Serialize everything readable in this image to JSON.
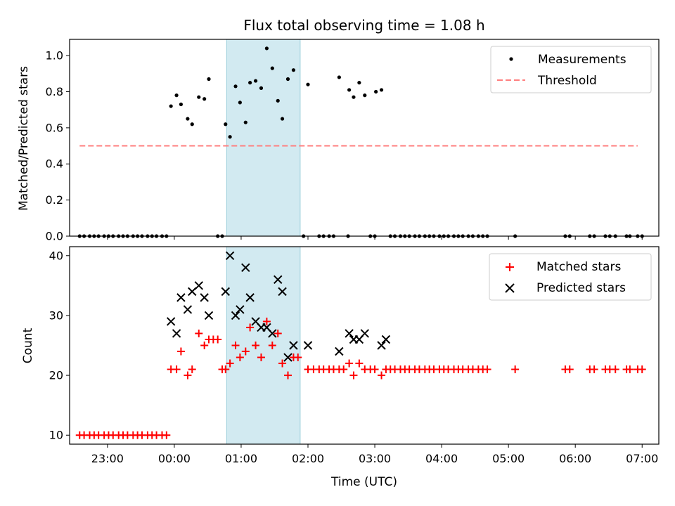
{
  "colors": {
    "measurement": "#000000",
    "threshold": "#ff7f7f",
    "matched": "#ff0000",
    "predicted": "#000000",
    "span": "#add8e6",
    "span_edge": "#9ccfdc"
  },
  "chart_data": [
    {
      "type": "scatter",
      "title": "Flux total observing time = 1.08 h",
      "xlabel": "",
      "ylabel": "Matched/Predicted stars",
      "ylim": [
        0,
        1.09
      ],
      "xlim": [
        "22:26",
        "07:15"
      ],
      "x_is_time_utc": true,
      "yticks": [
        "0.0",
        "0.2",
        "0.4",
        "0.6",
        "0.8",
        "1.0"
      ],
      "ytick_values": [
        0,
        0.2,
        0.4,
        0.6,
        0.8,
        1.0
      ],
      "xticks_shown": false,
      "legend_position": "top-right",
      "highlight_span": [
        "00:47",
        "01:53"
      ],
      "threshold": {
        "name": "Threshold",
        "value": 0.5,
        "x_range": [
          "22:35",
          "06:56"
        ],
        "style": "dashed"
      },
      "series": [
        {
          "name": "Measurements",
          "marker": "dot",
          "points": [
            [
              "22:35",
              0
            ],
            [
              "22:39",
              0
            ],
            [
              "22:44",
              0
            ],
            [
              "22:48",
              0
            ],
            [
              "22:52",
              0
            ],
            [
              "22:57",
              0
            ],
            [
              "23:01",
              0
            ],
            [
              "23:05",
              0
            ],
            [
              "23:10",
              0
            ],
            [
              "23:14",
              0
            ],
            [
              "23:18",
              0
            ],
            [
              "23:23",
              0
            ],
            [
              "23:27",
              0
            ],
            [
              "23:31",
              0
            ],
            [
              "23:36",
              0
            ],
            [
              "23:40",
              0
            ],
            [
              "23:44",
              0
            ],
            [
              "23:49",
              0
            ],
            [
              "23:53",
              0
            ],
            [
              "23:57",
              0.72
            ],
            [
              "00:02",
              0.78
            ],
            [
              "00:06",
              0.73
            ],
            [
              "00:12",
              0.65
            ],
            [
              "00:16",
              0.62
            ],
            [
              "00:22",
              0.77
            ],
            [
              "00:27",
              0.76
            ],
            [
              "00:31",
              0.87
            ],
            [
              "00:39",
              0
            ],
            [
              "00:43",
              0
            ],
            [
              "00:46",
              0.62
            ],
            [
              "00:50",
              0.55
            ],
            [
              "00:55",
              0.83
            ],
            [
              "00:59",
              0.74
            ],
            [
              "01:04",
              0.63
            ],
            [
              "01:08",
              0.85
            ],
            [
              "01:13",
              0.86
            ],
            [
              "01:18",
              0.82
            ],
            [
              "01:23",
              1.04
            ],
            [
              "01:28",
              0.93
            ],
            [
              "01:33",
              0.75
            ],
            [
              "01:37",
              0.65
            ],
            [
              "01:42",
              0.87
            ],
            [
              "01:47",
              0.92
            ],
            [
              "01:56",
              0
            ],
            [
              "02:10",
              0
            ],
            [
              "02:14",
              0
            ],
            [
              "02:19",
              0
            ],
            [
              "02:23",
              0
            ],
            [
              "02:36",
              0
            ],
            [
              "02:00",
              0.84
            ],
            [
              "02:28",
              0.88
            ],
            [
              "02:37",
              0.81
            ],
            [
              "02:41",
              0.77
            ],
            [
              "02:46",
              0.85
            ],
            [
              "02:51",
              0.78
            ],
            [
              "03:01",
              0.8
            ],
            [
              "03:06",
              0.81
            ],
            [
              "02:56",
              0
            ],
            [
              "03:00",
              0
            ],
            [
              "03:14",
              0
            ],
            [
              "03:18",
              0
            ],
            [
              "03:23",
              0
            ],
            [
              "03:27",
              0
            ],
            [
              "03:31",
              0
            ],
            [
              "03:36",
              0
            ],
            [
              "03:40",
              0
            ],
            [
              "03:45",
              0
            ],
            [
              "03:49",
              0
            ],
            [
              "03:53",
              0
            ],
            [
              "03:58",
              0
            ],
            [
              "04:02",
              0
            ],
            [
              "04:06",
              0
            ],
            [
              "04:11",
              0
            ],
            [
              "04:15",
              0
            ],
            [
              "04:19",
              0
            ],
            [
              "04:24",
              0
            ],
            [
              "04:28",
              0
            ],
            [
              "04:33",
              0
            ],
            [
              "04:37",
              0
            ],
            [
              "04:41",
              0
            ],
            [
              "05:06",
              0
            ],
            [
              "05:51",
              0
            ],
            [
              "05:55",
              0
            ],
            [
              "06:13",
              0
            ],
            [
              "06:17",
              0
            ],
            [
              "06:27",
              0
            ],
            [
              "06:31",
              0
            ],
            [
              "06:36",
              0
            ],
            [
              "06:46",
              0
            ],
            [
              "06:49",
              0
            ],
            [
              "06:56",
              0
            ],
            [
              "07:00",
              0
            ]
          ]
        }
      ]
    },
    {
      "type": "scatter",
      "title": "",
      "xlabel": "Time (UTC)",
      "ylabel": "Count",
      "ylim": [
        8.5,
        41.5
      ],
      "xlim": [
        "22:26",
        "07:15"
      ],
      "x_is_time_utc": true,
      "yticks": [
        "10",
        "20",
        "30",
        "40"
      ],
      "ytick_values": [
        10,
        20,
        30,
        40
      ],
      "xticks": [
        "23:00",
        "00:00",
        "01:00",
        "02:00",
        "03:00",
        "04:00",
        "05:00",
        "06:00",
        "07:00"
      ],
      "legend_position": "top-right",
      "highlight_span": [
        "00:47",
        "01:53"
      ],
      "series": [
        {
          "name": "Matched stars",
          "marker": "plus",
          "points": [
            [
              "22:35",
              10
            ],
            [
              "22:39",
              10
            ],
            [
              "22:44",
              10
            ],
            [
              "22:48",
              10
            ],
            [
              "22:52",
              10
            ],
            [
              "22:57",
              10
            ],
            [
              "23:01",
              10
            ],
            [
              "23:05",
              10
            ],
            [
              "23:10",
              10
            ],
            [
              "23:14",
              10
            ],
            [
              "23:18",
              10
            ],
            [
              "23:23",
              10
            ],
            [
              "23:27",
              10
            ],
            [
              "23:31",
              10
            ],
            [
              "23:36",
              10
            ],
            [
              "23:40",
              10
            ],
            [
              "23:44",
              10
            ],
            [
              "23:49",
              10
            ],
            [
              "23:53",
              10
            ],
            [
              "23:57",
              21
            ],
            [
              "00:02",
              21
            ],
            [
              "00:06",
              24
            ],
            [
              "00:12",
              20
            ],
            [
              "00:16",
              21
            ],
            [
              "00:22",
              27
            ],
            [
              "00:27",
              25
            ],
            [
              "00:31",
              26
            ],
            [
              "00:35",
              26
            ],
            [
              "00:39",
              26
            ],
            [
              "00:43",
              21
            ],
            [
              "00:46",
              21
            ],
            [
              "00:50",
              22
            ],
            [
              "00:55",
              25
            ],
            [
              "00:59",
              23
            ],
            [
              "01:04",
              24
            ],
            [
              "01:08",
              28
            ],
            [
              "01:13",
              25
            ],
            [
              "01:18",
              23
            ],
            [
              "01:23",
              29
            ],
            [
              "01:28",
              25
            ],
            [
              "01:33",
              27
            ],
            [
              "01:37",
              22
            ],
            [
              "01:42",
              20
            ],
            [
              "01:47",
              23
            ],
            [
              "01:51",
              23
            ],
            [
              "02:00",
              21
            ],
            [
              "02:05",
              21
            ],
            [
              "02:10",
              21
            ],
            [
              "02:14",
              21
            ],
            [
              "02:19",
              21
            ],
            [
              "02:23",
              21
            ],
            [
              "02:28",
              21
            ],
            [
              "02:32",
              21
            ],
            [
              "02:37",
              22
            ],
            [
              "02:41",
              20
            ],
            [
              "02:46",
              22
            ],
            [
              "02:51",
              21
            ],
            [
              "02:56",
              21
            ],
            [
              "03:00",
              21
            ],
            [
              "03:06",
              20
            ],
            [
              "03:10",
              21
            ],
            [
              "03:14",
              21
            ],
            [
              "03:18",
              21
            ],
            [
              "03:23",
              21
            ],
            [
              "03:27",
              21
            ],
            [
              "03:31",
              21
            ],
            [
              "03:36",
              21
            ],
            [
              "03:40",
              21
            ],
            [
              "03:45",
              21
            ],
            [
              "03:49",
              21
            ],
            [
              "03:53",
              21
            ],
            [
              "03:58",
              21
            ],
            [
              "04:02",
              21
            ],
            [
              "04:06",
              21
            ],
            [
              "04:11",
              21
            ],
            [
              "04:15",
              21
            ],
            [
              "04:19",
              21
            ],
            [
              "04:24",
              21
            ],
            [
              "04:28",
              21
            ],
            [
              "04:33",
              21
            ],
            [
              "04:37",
              21
            ],
            [
              "04:41",
              21
            ],
            [
              "05:06",
              21
            ],
            [
              "05:51",
              21
            ],
            [
              "05:55",
              21
            ],
            [
              "06:13",
              21
            ],
            [
              "06:17",
              21
            ],
            [
              "06:27",
              21
            ],
            [
              "06:31",
              21
            ],
            [
              "06:36",
              21
            ],
            [
              "06:46",
              21
            ],
            [
              "06:49",
              21
            ],
            [
              "06:56",
              21
            ],
            [
              "07:00",
              21
            ]
          ]
        },
        {
          "name": "Predicted stars",
          "marker": "x",
          "points": [
            [
              "23:57",
              29
            ],
            [
              "00:02",
              27
            ],
            [
              "00:06",
              33
            ],
            [
              "00:12",
              31
            ],
            [
              "00:16",
              34
            ],
            [
              "00:22",
              35
            ],
            [
              "00:27",
              33
            ],
            [
              "00:31",
              30
            ],
            [
              "00:46",
              34
            ],
            [
              "00:50",
              40
            ],
            [
              "00:55",
              30
            ],
            [
              "00:59",
              31
            ],
            [
              "01:04",
              38
            ],
            [
              "01:08",
              33
            ],
            [
              "01:13",
              29
            ],
            [
              "01:18",
              28
            ],
            [
              "01:23",
              28
            ],
            [
              "01:28",
              27
            ],
            [
              "01:33",
              36
            ],
            [
              "01:37",
              34
            ],
            [
              "01:42",
              23
            ],
            [
              "01:47",
              25
            ],
            [
              "02:00",
              25
            ],
            [
              "02:28",
              24
            ],
            [
              "02:37",
              27
            ],
            [
              "02:41",
              26
            ],
            [
              "02:46",
              26
            ],
            [
              "02:51",
              27
            ],
            [
              "03:06",
              25
            ],
            [
              "03:10",
              26
            ]
          ]
        }
      ]
    }
  ]
}
